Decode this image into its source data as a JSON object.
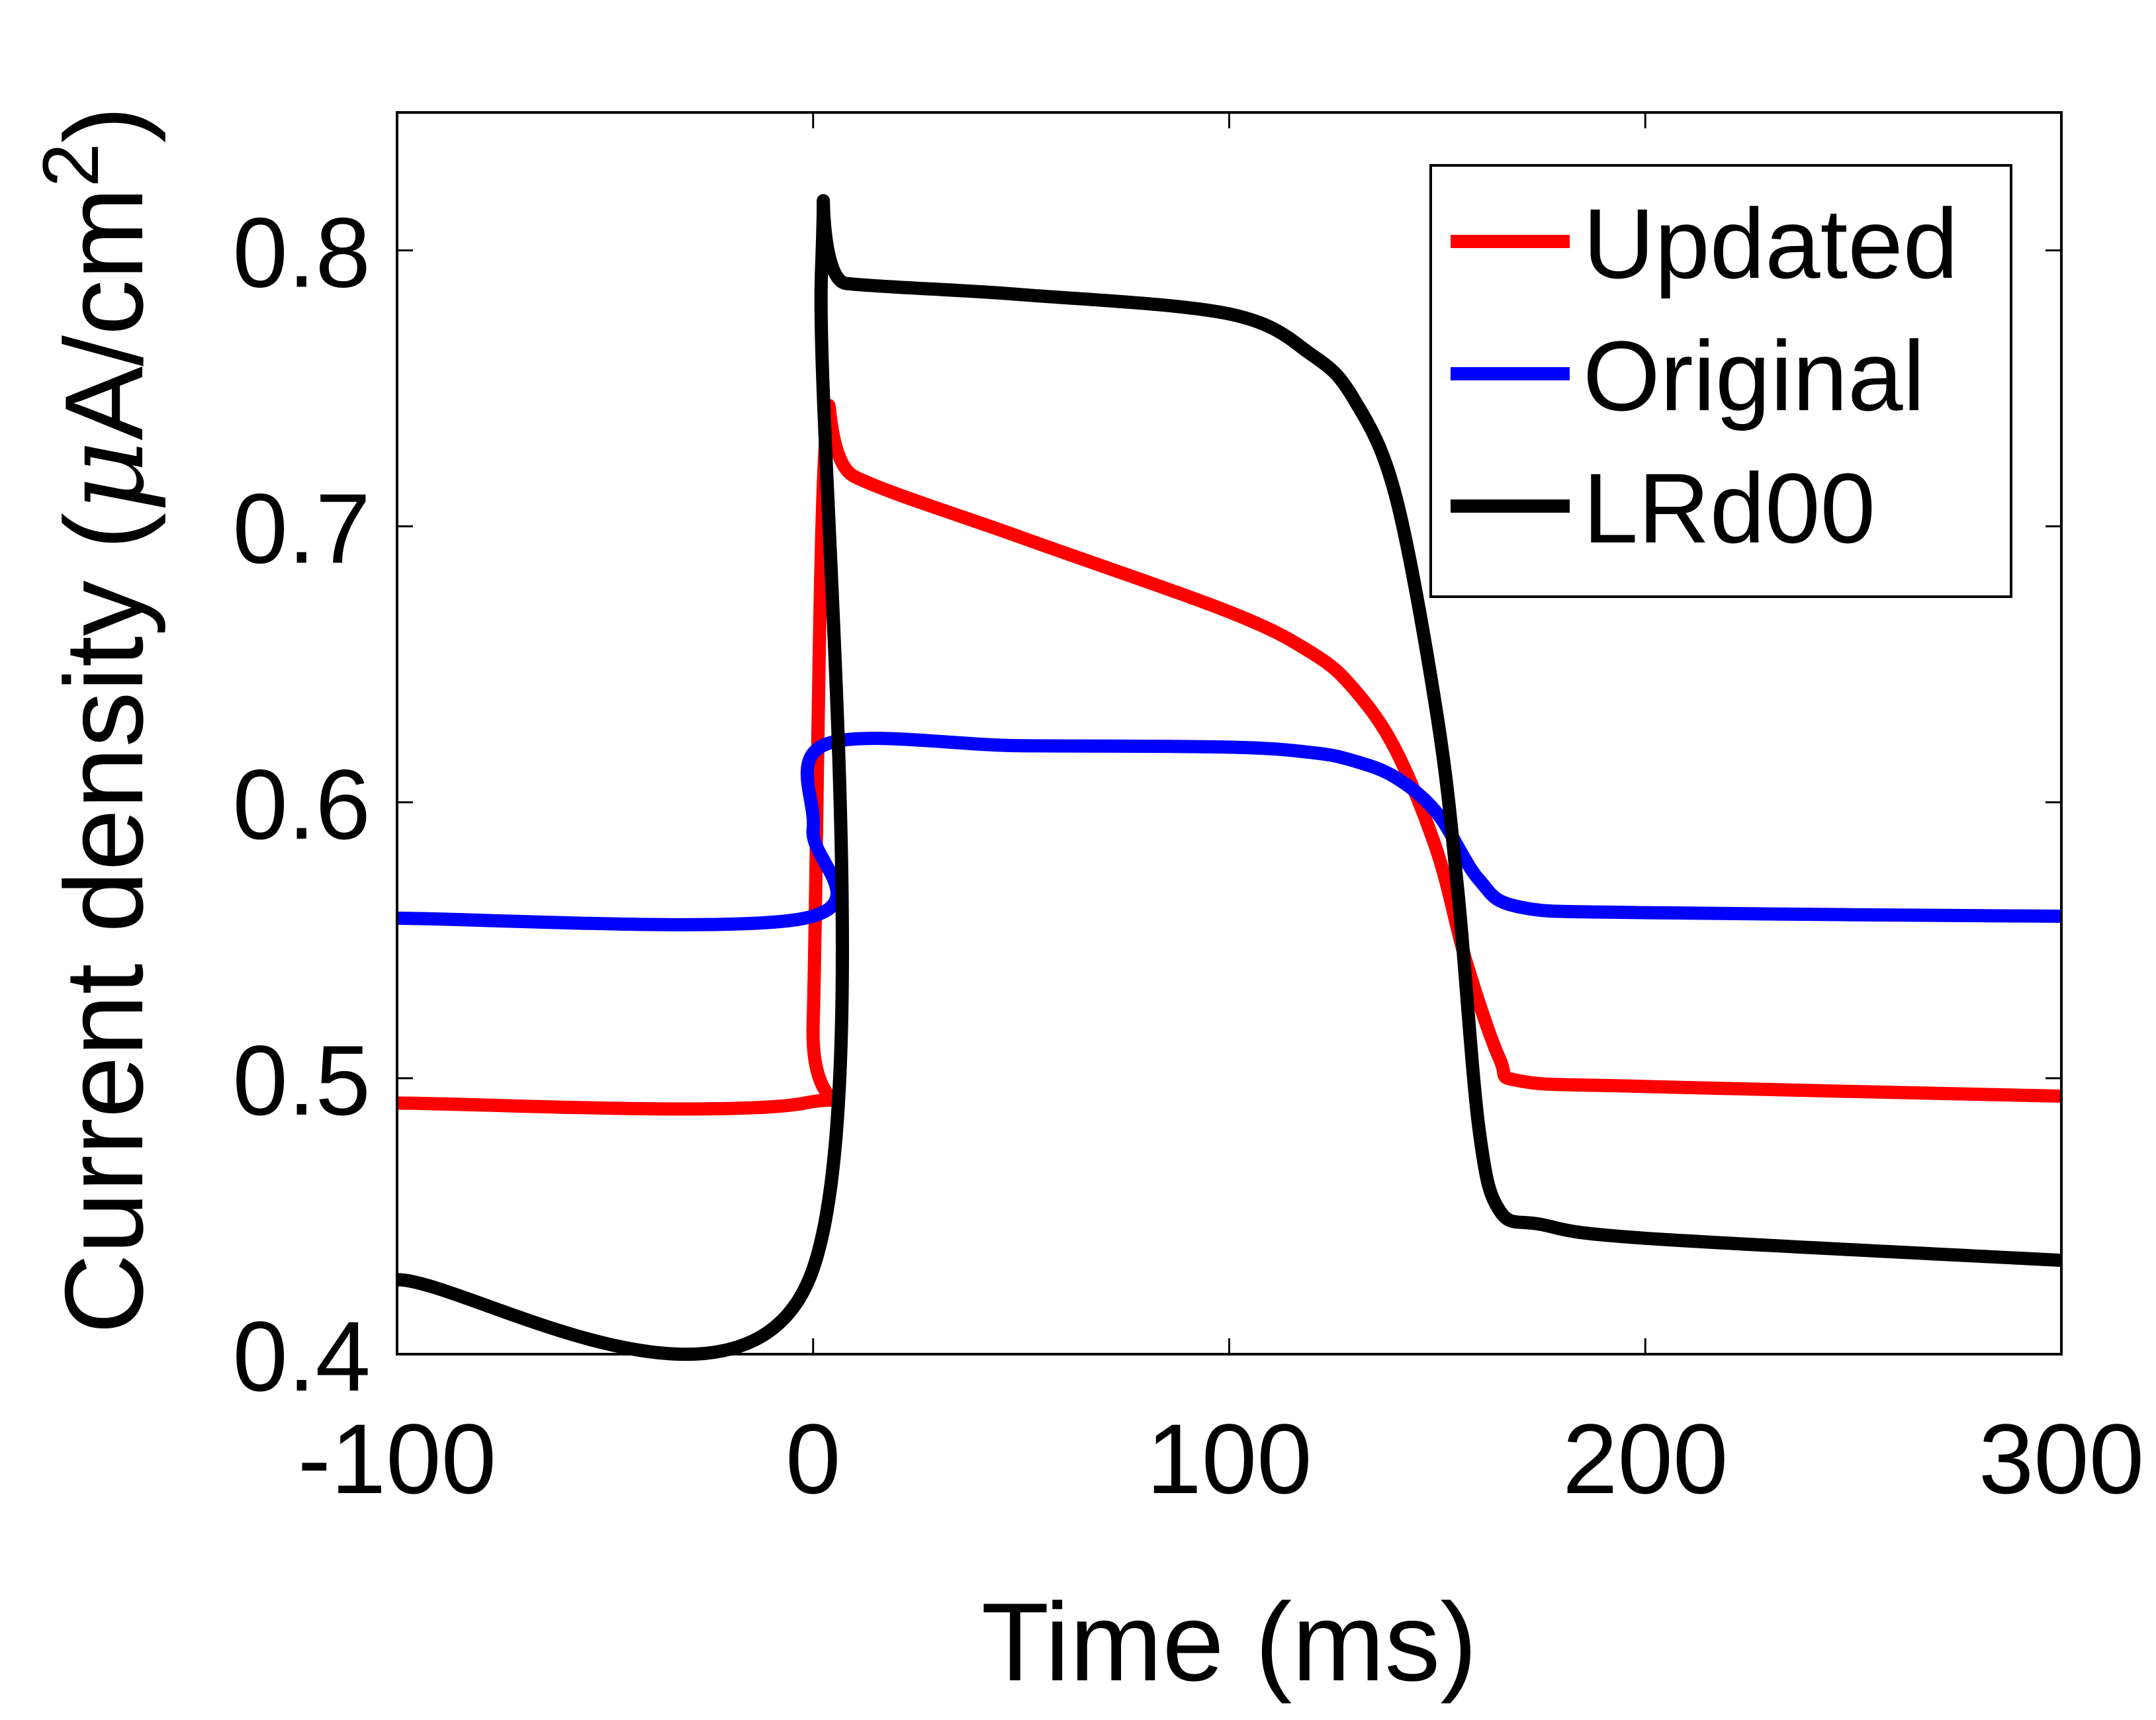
{
  "chart_data": {
    "type": "line",
    "title": "",
    "xlabel": "Time (ms)",
    "ylabel": "Current density (μA/cm²)",
    "ylabel_parts": {
      "main": "Current density (",
      "mu": "μ",
      "unit": "A/cm",
      "sup": "2",
      "close": ")"
    },
    "xlim": [
      -100,
      300
    ],
    "ylim": [
      0.4,
      0.85
    ],
    "xticks": [
      -100,
      0,
      100,
      200,
      300
    ],
    "xtick_labels": [
      "-100",
      "0",
      "100",
      "200",
      "300"
    ],
    "yticks": [
      0.4,
      0.5,
      0.6,
      0.7,
      0.8
    ],
    "ytick_labels": [
      "0.4",
      "0.5",
      "0.6",
      "0.7",
      "0.8"
    ],
    "grid": false,
    "legend_position": "top-right",
    "series": [
      {
        "name": "Updated",
        "color": "#ff0000",
        "x": [
          -100,
          -2,
          0,
          3,
          10,
          50,
          100,
          120,
          130,
          140,
          150,
          157,
          165,
          170,
          200,
          300
        ],
        "y": [
          0.491,
          0.491,
          0.52,
          0.731,
          0.718,
          0.696,
          0.669,
          0.654,
          0.641,
          0.619,
          0.582,
          0.542,
          0.507,
          0.499,
          0.497,
          0.4935
        ]
      },
      {
        "name": "Original",
        "color": "#0000ff",
        "x": [
          -100,
          -2,
          0,
          3,
          50,
          100,
          120,
          130,
          140,
          150,
          160,
          170,
          200,
          300
        ],
        "y": [
          0.558,
          0.558,
          0.59,
          0.621,
          0.6205,
          0.62,
          0.618,
          0.615,
          0.609,
          0.596,
          0.572,
          0.562,
          0.56,
          0.5587
        ]
      },
      {
        "name": "LRd00",
        "color": "#000000",
        "x": [
          -100,
          -1,
          2,
          8,
          50,
          100,
          120,
          130,
          140,
          150,
          155,
          160,
          165,
          175,
          200,
          300
        ],
        "y": [
          0.427,
          0.427,
          0.792,
          0.788,
          0.784,
          0.777,
          0.762,
          0.746,
          0.711,
          0.631,
          0.567,
          0.482,
          0.452,
          0.447,
          0.442,
          0.434
        ]
      }
    ]
  }
}
